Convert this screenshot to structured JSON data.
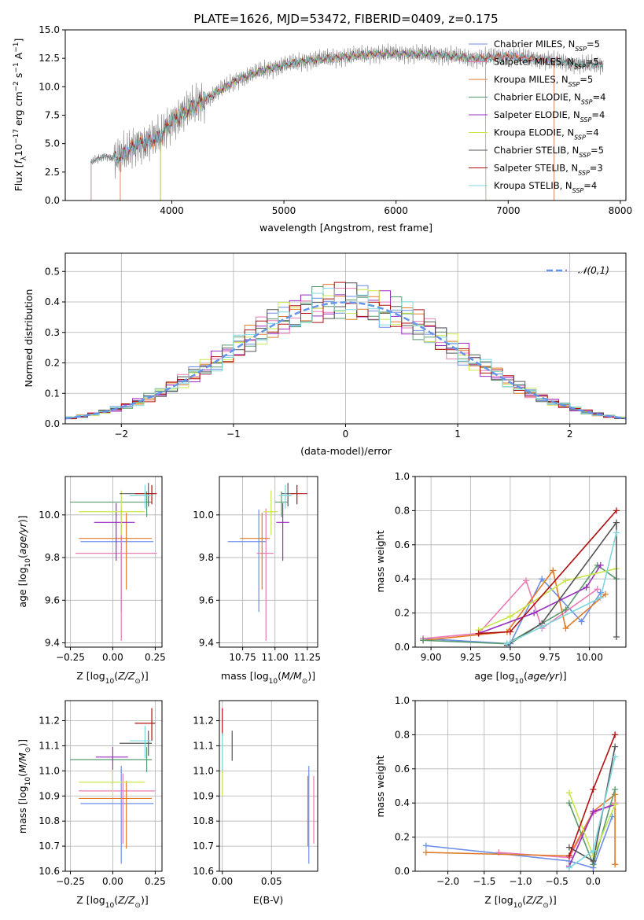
{
  "figure": {
    "title": "PLATE=1626, MJD=53472, FIBERID=0409, z=0.175"
  },
  "model_colors": {
    "Chabrier MILES": "#6b8ee8",
    "Salpeter MILES": "#e87bb8",
    "Kroupa MILES": "#e07b28",
    "Chabrier ELODIE": "#5a9a6e",
    "Salpeter ELODIE": "#9a2fc0",
    "Kroupa ELODIE": "#c8e84a",
    "Chabrier STELIB": "#555555",
    "Salpeter STELIB": "#b01010",
    "Kroupa STELIB": "#7fd6dc"
  },
  "chart_data": [
    {
      "id": "spectrum",
      "type": "line",
      "xlabel": "wavelength [Angstrom, rest frame]",
      "ylabel": "Flux [f_λ10^-17 erg cm^-2 s^-1 A^-1]",
      "xlim": [
        3050,
        8050
      ],
      "ylim": [
        0,
        15
      ],
      "xticks": [
        4000,
        5000,
        6000,
        7000,
        8000
      ],
      "yticks": [
        0.0,
        2.5,
        5.0,
        7.5,
        10.0,
        12.5,
        15.0
      ],
      "data_color": "#7f7f7f",
      "continuum": [
        [
          3280,
          3.4
        ],
        [
          3400,
          3.9
        ],
        [
          3500,
          3.7
        ],
        [
          3600,
          4.2
        ],
        [
          3700,
          5.0
        ],
        [
          3800,
          5.2
        ],
        [
          3900,
          5.6
        ],
        [
          4000,
          7.0
        ],
        [
          4200,
          8.3
        ],
        [
          4400,
          9.5
        ],
        [
          4600,
          10.7
        ],
        [
          4800,
          11.4
        ],
        [
          5000,
          11.9
        ],
        [
          5200,
          12.3
        ],
        [
          5500,
          12.6
        ],
        [
          5800,
          12.9
        ],
        [
          6100,
          12.9
        ],
        [
          6400,
          12.8
        ],
        [
          6700,
          12.5
        ],
        [
          7000,
          12.7
        ],
        [
          7300,
          12.4
        ],
        [
          7600,
          12.0
        ],
        [
          7850,
          11.9
        ]
      ],
      "legend": [
        {
          "label": "Chabrier MILES, N_SSP=5"
        },
        {
          "label": "Salpeter MILES, N_SSP=5"
        },
        {
          "label": "Kroupa MILES, N_SSP=5"
        },
        {
          "label": "Chabrier ELODIE, N_SSP=4"
        },
        {
          "label": "Salpeter ELODIE, N_SSP=4"
        },
        {
          "label": "Kroupa ELODIE, N_SSP=4"
        },
        {
          "label": "Chabrier STELIB, N_SSP=5"
        },
        {
          "label": "Salpeter STELIB, N_SSP=3"
        },
        {
          "label": "Kroupa STELIB, N_SSP=4"
        }
      ],
      "legend_position": "upper-right"
    },
    {
      "id": "residuals",
      "type": "histogram",
      "xlabel": "(data-model)/error",
      "ylabel": "Normed distribution",
      "xlim": [
        -2.5,
        2.5
      ],
      "ylim": [
        0,
        0.56
      ],
      "xticks": [
        -2,
        -1,
        0,
        1,
        2
      ],
      "yticks": [
        0.0,
        0.1,
        0.2,
        0.3,
        0.4,
        0.5
      ],
      "bin_width": 0.1,
      "legend": [
        {
          "label": "N(0,1)"
        }
      ],
      "legend_position": "upper-right",
      "grid": true
    },
    {
      "id": "age-vs-Z",
      "type": "errorbar",
      "xlabel": "Z [log10(Z/Z_sun)]",
      "ylabel": "age [log10(age/yr)]",
      "xlim": [
        -0.28,
        0.29
      ],
      "ylim": [
        9.38,
        10.18
      ],
      "xticks": [
        -0.25,
        0.0,
        0.25
      ],
      "yticks": [
        9.4,
        9.6,
        9.8,
        10.0
      ],
      "points": [
        {
          "model": "Chabrier MILES",
          "x": 0.05,
          "y": 9.875,
          "xerr": [
            0.24,
            0.19
          ],
          "yerr": [
            0.33,
            0.15
          ]
        },
        {
          "model": "Salpeter MILES",
          "x": 0.05,
          "y": 9.82,
          "xerr": [
            0.27,
            0.21
          ],
          "yerr": [
            0.41,
            0.21
          ]
        },
        {
          "model": "Kroupa MILES",
          "x": 0.08,
          "y": 9.89,
          "xerr": [
            0.28,
            0.15
          ],
          "yerr": [
            0.24,
            0.12
          ]
        },
        {
          "model": "Chabrier ELODIE",
          "x": 0.2,
          "y": 10.06,
          "xerr": [
            0.45,
            0.03
          ],
          "yerr": [
            0.07,
            0.05
          ]
        },
        {
          "model": "Salpeter ELODIE",
          "x": 0.02,
          "y": 9.965,
          "xerr": [
            0.13,
            0.11
          ],
          "yerr": [
            0.18,
            0.09
          ]
        },
        {
          "model": "Kroupa ELODIE",
          "x": 0.05,
          "y": 10.015,
          "xerr": [
            0.25,
            0.14
          ],
          "yerr": [
            0.11,
            0.1
          ]
        },
        {
          "model": "Chabrier STELIB",
          "x": 0.21,
          "y": 10.1,
          "xerr": [
            0.17,
            0.04
          ],
          "yerr": [
            0.06,
            0.05
          ]
        },
        {
          "model": "Salpeter STELIB",
          "x": 0.23,
          "y": 10.1,
          "xerr": [
            0.1,
            0.03
          ],
          "yerr": [
            0.05,
            0.04
          ]
        },
        {
          "model": "Kroupa STELIB",
          "x": 0.19,
          "y": 10.09,
          "xerr": [
            0.09,
            0.04
          ],
          "yerr": [
            0.06,
            0.05
          ]
        }
      ]
    },
    {
      "id": "age-vs-mass",
      "type": "errorbar",
      "xlabel": "mass [log10(M/M_sun)]",
      "xlim": [
        10.57,
        11.33
      ],
      "ylim": [
        9.38,
        10.18
      ],
      "xticks": [
        10.75,
        11.0,
        11.25
      ],
      "yticks": [
        9.4,
        9.6,
        9.8,
        10.0
      ],
      "points": [
        {
          "model": "Chabrier MILES",
          "x": 10.875,
          "y": 9.875,
          "xerr": [
            0.24,
            0.06
          ],
          "yerr": [
            0.33,
            0.15
          ]
        },
        {
          "model": "Salpeter MILES",
          "x": 10.93,
          "y": 9.82,
          "xerr": [
            0.07,
            0.06
          ],
          "yerr": [
            0.41,
            0.21
          ]
        },
        {
          "model": "Kroupa MILES",
          "x": 10.9,
          "y": 9.89,
          "xerr": [
            0.17,
            0.06
          ],
          "yerr": [
            0.24,
            0.12
          ]
        },
        {
          "model": "Chabrier ELODIE",
          "x": 11.05,
          "y": 10.06,
          "xerr": [
            0.05,
            0.05
          ],
          "yerr": [
            0.07,
            0.05
          ]
        },
        {
          "model": "Salpeter ELODIE",
          "x": 11.06,
          "y": 9.965,
          "xerr": [
            0.05,
            0.05
          ],
          "yerr": [
            0.18,
            0.09
          ]
        },
        {
          "model": "Kroupa ELODIE",
          "x": 10.97,
          "y": 10.015,
          "xerr": [
            0.06,
            0.05
          ],
          "yerr": [
            0.11,
            0.1
          ]
        },
        {
          "model": "Chabrier STELIB",
          "x": 11.1,
          "y": 10.1,
          "xerr": [
            0.05,
            0.05
          ],
          "yerr": [
            0.06,
            0.05
          ]
        },
        {
          "model": "Salpeter STELIB",
          "x": 11.17,
          "y": 10.1,
          "xerr": [
            0.05,
            0.08
          ],
          "yerr": [
            0.05,
            0.04
          ]
        },
        {
          "model": "Kroupa STELIB",
          "x": 11.08,
          "y": 10.09,
          "xerr": [
            0.05,
            0.05
          ],
          "yerr": [
            0.06,
            0.05
          ]
        }
      ]
    },
    {
      "id": "weight-vs-age",
      "type": "line",
      "xlabel": "age [log10(age/yr)]",
      "ylabel": "mass weight",
      "xlim": [
        8.9,
        10.23
      ],
      "ylim": [
        0,
        1.0
      ],
      "xticks": [
        9.0,
        9.25,
        9.5,
        9.75,
        10.0
      ],
      "yticks": [
        0.0,
        0.2,
        0.4,
        0.6,
        0.8,
        1.0
      ],
      "series": [
        {
          "model": "Chabrier MILES",
          "x": [
            8.95,
            9.5,
            9.7,
            9.95,
            10.07
          ],
          "y": [
            0.05,
            0.02,
            0.4,
            0.15,
            0.32
          ]
        },
        {
          "model": "Salpeter MILES",
          "x": [
            8.95,
            9.3,
            9.6,
            9.7,
            10.05
          ],
          "y": [
            0.05,
            0.08,
            0.39,
            0.11,
            0.34
          ]
        },
        {
          "model": "Kroupa MILES",
          "x": [
            8.95,
            9.48,
            9.77,
            9.85,
            10.1
          ],
          "y": [
            0.04,
            0.09,
            0.45,
            0.11,
            0.31
          ]
        },
        {
          "model": "Chabrier ELODIE",
          "x": [
            8.95,
            9.48,
            9.85,
            10.05,
            10.17
          ],
          "y": [
            0.04,
            0.02,
            0.22,
            0.48,
            0.4
          ]
        },
        {
          "model": "Salpeter ELODIE",
          "x": [
            9.3,
            9.65,
            9.98,
            10.07
          ],
          "y": [
            0.08,
            0.2,
            0.35,
            0.48
          ]
        },
        {
          "model": "Kroupa ELODIE",
          "x": [
            9.3,
            9.5,
            9.85,
            10.17
          ],
          "y": [
            0.1,
            0.18,
            0.39,
            0.46
          ]
        },
        {
          "model": "Chabrier STELIB",
          "x": [
            9.48,
            9.7,
            10.17,
            10.17
          ],
          "y": [
            0.01,
            0.14,
            0.73,
            0.06
          ]
        },
        {
          "model": "Salpeter STELIB",
          "x": [
            9.3,
            9.5,
            10.17
          ],
          "y": [
            0.08,
            0.09,
            0.8
          ]
        },
        {
          "model": "Kroupa STELIB",
          "x": [
            9.48,
            9.7,
            10.07,
            10.17
          ],
          "y": [
            0.02,
            0.12,
            0.29,
            0.67
          ]
        }
      ]
    },
    {
      "id": "mass-vs-Z",
      "type": "errorbar",
      "xlabel": "Z [log10(Z/Z_sun)]",
      "ylabel": "mass [log10(M/M_sun)]",
      "xlim": [
        -0.28,
        0.29
      ],
      "ylim": [
        10.6,
        11.28
      ],
      "xticks": [
        -0.25,
        0.0,
        0.25
      ],
      "yticks": [
        10.6,
        10.7,
        10.8,
        10.9,
        11.0,
        11.1,
        11.2
      ],
      "points": [
        {
          "model": "Chabrier MILES",
          "x": 0.05,
          "y": 10.87,
          "xerr": [
            0.24,
            0.19
          ],
          "yerr": [
            0.24,
            0.15
          ]
        },
        {
          "model": "Salpeter MILES",
          "x": 0.06,
          "y": 10.92,
          "xerr": [
            0.26,
            0.19
          ],
          "yerr": [
            0.21,
            0.07
          ]
        },
        {
          "model": "Kroupa MILES",
          "x": 0.08,
          "y": 10.89,
          "xerr": [
            0.28,
            0.15
          ],
          "yerr": [
            0.2,
            0.07
          ]
        },
        {
          "model": "Chabrier ELODIE",
          "x": 0.2,
          "y": 11.045,
          "xerr": [
            0.45,
            0.03
          ],
          "yerr": [
            0.05,
            0.05
          ]
        },
        {
          "model": "Salpeter ELODIE",
          "x": 0.0,
          "y": 11.055,
          "xerr": [
            0.1,
            0.09
          ],
          "yerr": [
            0.11,
            0.04
          ]
        },
        {
          "model": "Kroupa ELODIE",
          "x": 0.0,
          "y": 10.955,
          "xerr": [
            0.2,
            0.19
          ],
          "yerr": [
            0.06,
            0.05
          ]
        },
        {
          "model": "Chabrier STELIB",
          "x": 0.21,
          "y": 11.11,
          "xerr": [
            0.17,
            0.02
          ],
          "yerr": [
            0.05,
            0.05
          ]
        },
        {
          "model": "Salpeter STELIB",
          "x": 0.23,
          "y": 11.19,
          "xerr": [
            0.1,
            0.02
          ],
          "yerr": [
            0.07,
            0.06
          ]
        },
        {
          "model": "Kroupa STELIB",
          "x": 0.19,
          "y": 11.12,
          "xerr": [
            0.09,
            0.04
          ],
          "yerr": [
            0.07,
            0.06
          ]
        }
      ]
    },
    {
      "id": "mass-vs-EBV",
      "type": "errorbar",
      "xlabel": "E(B-V)",
      "xlim": [
        -0.003,
        0.097
      ],
      "ylim": [
        10.6,
        11.28
      ],
      "xticks": [
        0.0,
        0.05
      ],
      "yticks": [
        10.6,
        10.7,
        10.8,
        10.9,
        11.0,
        11.1,
        11.2
      ],
      "points": [
        {
          "model": "Chabrier MILES",
          "x": 0.088,
          "y": 10.87,
          "xerr": [
            0,
            0
          ],
          "yerr": [
            0.24,
            0.15
          ]
        },
        {
          "model": "Salpeter MILES",
          "x": 0.093,
          "y": 10.84,
          "xerr": [
            0,
            0
          ],
          "yerr": [
            0.13,
            0.14
          ]
        },
        {
          "model": "Kroupa MILES",
          "x": 0.087,
          "y": 10.9,
          "xerr": [
            0,
            0
          ],
          "yerr": [
            0.2,
            0.08
          ]
        },
        {
          "model": "Kroupa ELODIE",
          "x": 0.0,
          "y": 10.96,
          "xerr": [
            0,
            0
          ],
          "yerr": [
            0.06,
            0.06
          ]
        },
        {
          "model": "Chabrier STELIB",
          "x": 0.01,
          "y": 11.1,
          "xerr": [
            0,
            0
          ],
          "yerr": [
            0.06,
            0.06
          ]
        },
        {
          "model": "Salpeter STELIB",
          "x": 0.0,
          "y": 11.2,
          "xerr": [
            0,
            0
          ],
          "yerr": [
            0.06,
            0.05
          ]
        },
        {
          "model": "Kroupa STELIB",
          "x": 0.0,
          "y": 11.08,
          "xerr": [
            0,
            0
          ],
          "yerr": [
            0.08,
            0.07
          ]
        }
      ]
    },
    {
      "id": "weight-vs-Z",
      "type": "line",
      "xlabel": "Z [log10(Z/Z_sun)]",
      "ylabel": "mass weight",
      "xlim": [
        -2.45,
        0.45
      ],
      "ylim": [
        0,
        1.0
      ],
      "xticks": [
        -2.0,
        -1.5,
        -1.0,
        -0.5,
        0.0
      ],
      "yticks": [
        0.0,
        0.2,
        0.4,
        0.6,
        0.8,
        1.0
      ],
      "series": [
        {
          "model": "Chabrier MILES",
          "x": [
            -2.3,
            -0.33,
            0.0,
            0.26
          ],
          "y": [
            0.15,
            0.06,
            0.02,
            0.32
          ]
        },
        {
          "model": "Salpeter MILES",
          "x": [
            -1.3,
            -0.33,
            0.0,
            0.3
          ],
          "y": [
            0.11,
            0.08,
            0.34,
            0.4
          ]
        },
        {
          "model": "Kroupa MILES",
          "x": [
            -2.3,
            -0.33,
            0.0,
            0.3,
            0.3
          ],
          "y": [
            0.11,
            0.09,
            0.35,
            0.45,
            0.04
          ]
        },
        {
          "model": "Chabrier ELODIE",
          "x": [
            -0.33,
            0.0,
            0.3
          ],
          "y": [
            0.4,
            0.04,
            0.48
          ]
        },
        {
          "model": "Salpeter ELODIE",
          "x": [
            -0.33,
            0.0,
            0.3
          ],
          "y": [
            0.03,
            0.35,
            0.39
          ]
        },
        {
          "model": "Kroupa ELODIE",
          "x": [
            -0.33,
            0.0,
            0.3
          ],
          "y": [
            0.46,
            0.09,
            0.39
          ]
        },
        {
          "model": "Chabrier STELIB",
          "x": [
            -0.33,
            0.0,
            0.3
          ],
          "y": [
            0.14,
            0.06,
            0.73
          ]
        },
        {
          "model": "Salpeter STELIB",
          "x": [
            -0.33,
            0.0,
            0.3
          ],
          "y": [
            0.09,
            0.48,
            0.8
          ]
        },
        {
          "model": "Kroupa STELIB",
          "x": [
            -0.33,
            0.0,
            0.3
          ],
          "y": [
            0.02,
            0.12,
            0.67
          ]
        }
      ]
    }
  ]
}
